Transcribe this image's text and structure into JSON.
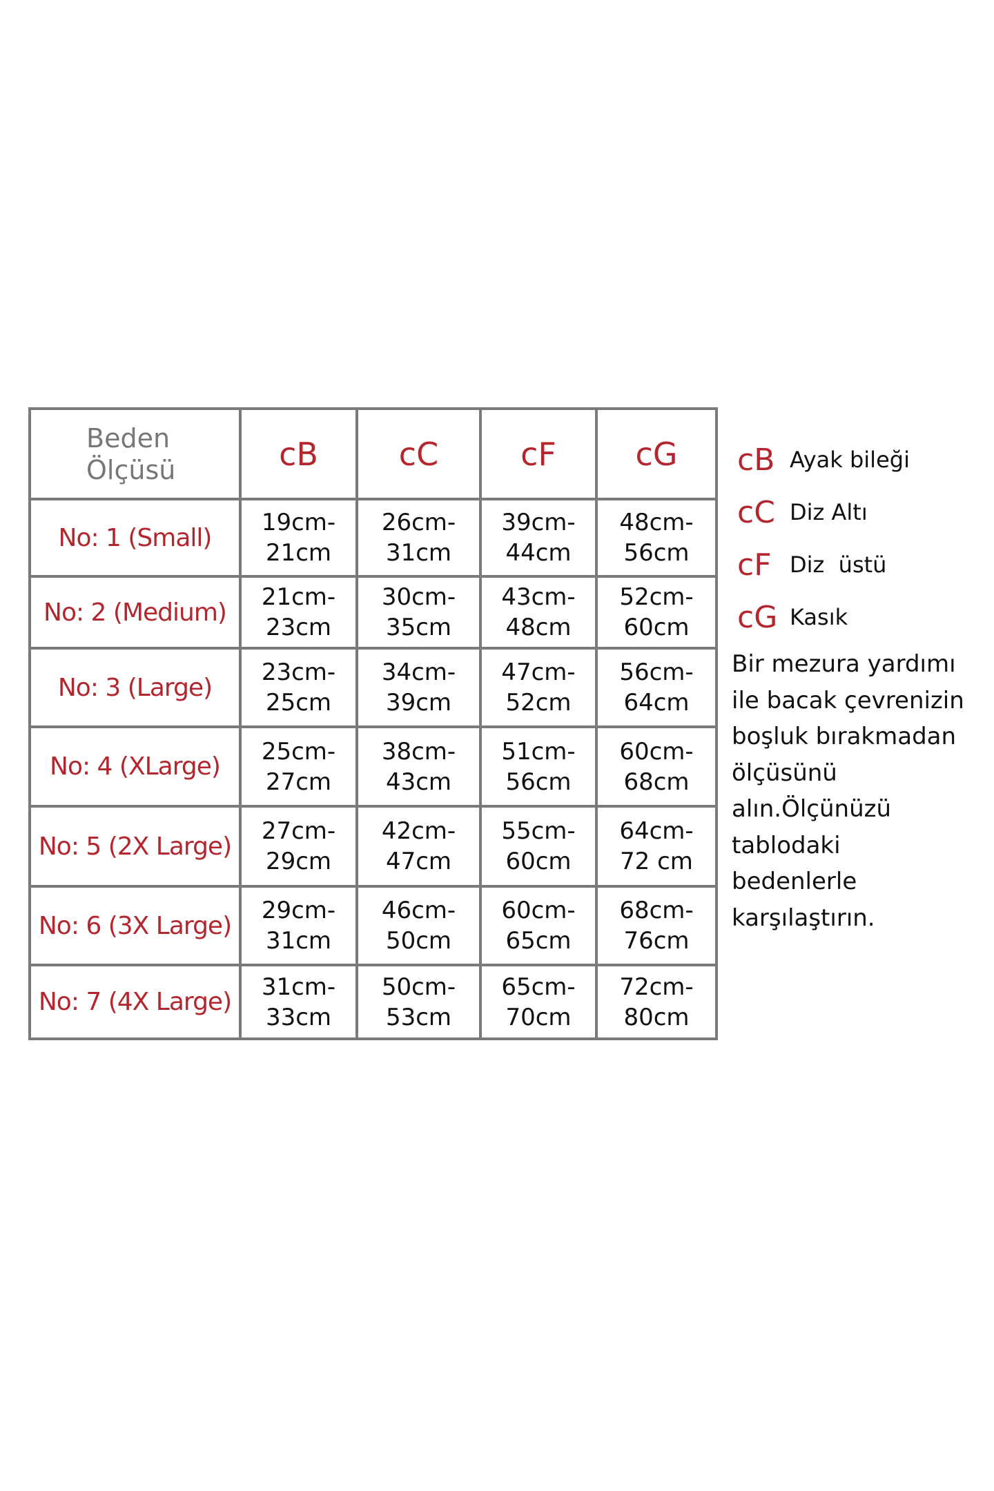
{
  "table": {
    "header_label": "Beden\nÖlçüsü",
    "columns": [
      "cB",
      "cC",
      "cF",
      "cG"
    ],
    "rows": [
      {
        "size": "No: 1 (Small)",
        "values": [
          [
            "19cm-",
            "21cm"
          ],
          [
            "26cm-",
            "31cm"
          ],
          [
            "39cm-",
            "44cm"
          ],
          [
            "48cm-",
            "56cm"
          ]
        ]
      },
      {
        "size": "No: 2 (Medium)",
        "values": [
          [
            "21cm-",
            "23cm"
          ],
          [
            "30cm-",
            "35cm"
          ],
          [
            "43cm-",
            "48cm"
          ],
          [
            "52cm-",
            "60cm"
          ]
        ]
      },
      {
        "size": "No: 3 (Large)",
        "values": [
          [
            "23cm-",
            "25cm"
          ],
          [
            "34cm-",
            "39cm"
          ],
          [
            "47cm-",
            "52cm"
          ],
          [
            "56cm-",
            "64cm"
          ]
        ]
      },
      {
        "size": "No: 4 (XLarge)",
        "values": [
          [
            "25cm-",
            "27cm"
          ],
          [
            "38cm-",
            "43cm"
          ],
          [
            "51cm-",
            "56cm"
          ],
          [
            "60cm-",
            "68cm"
          ]
        ]
      },
      {
        "size": "No: 5 (2X Large)",
        "values": [
          [
            "27cm-",
            "29cm"
          ],
          [
            "42cm-",
            "47cm"
          ],
          [
            "55cm-",
            "60cm"
          ],
          [
            "64cm-",
            "72 cm"
          ]
        ]
      },
      {
        "size": "No: 6 (3X Large)",
        "values": [
          [
            "29cm-",
            "31cm"
          ],
          [
            "46cm-",
            "50cm"
          ],
          [
            "60cm-",
            "65cm"
          ],
          [
            "68cm-",
            "76cm"
          ]
        ]
      },
      {
        "size": "No: 7 (4X Large)",
        "values": [
          [
            "31cm-",
            "33cm"
          ],
          [
            "50cm-",
            "53cm"
          ],
          [
            "65cm-",
            "70cm"
          ],
          [
            "72cm-",
            "80cm"
          ]
        ]
      }
    ]
  },
  "legend": [
    {
      "code": "cB",
      "label": "Ayak bileği"
    },
    {
      "code": "cC",
      "label": "Diz Altı"
    },
    {
      "code": "cF",
      "label": "Diz  üstü"
    },
    {
      "code": "cG",
      "label": "Kasık"
    }
  ],
  "note": "Bir mezura yardımı\nile bacak çevrenizin\nboşluk bırakmadan\nölçüsünü\nalın.Ölçünüzü\ntablodaki\nbedenlerle\nkarşılaştırın.",
  "colors": {
    "accent": "#b3262e",
    "border": "#7a7a7a",
    "header_label": "#777777"
  }
}
